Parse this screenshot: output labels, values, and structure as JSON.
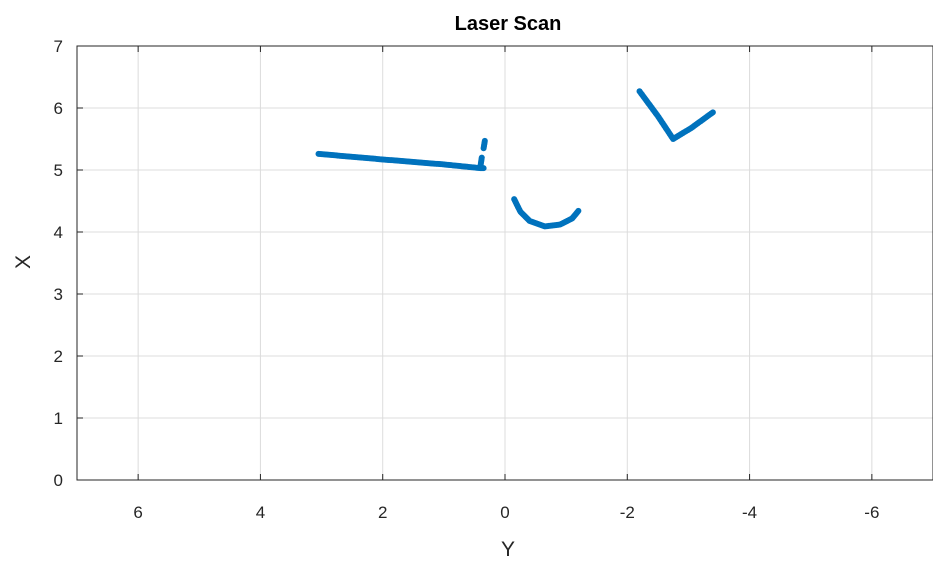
{
  "chart_data": {
    "type": "scatter",
    "title": "Laser Scan",
    "xlabel": "Y",
    "ylabel": "X",
    "xlim": [
      7,
      -7
    ],
    "ylim": [
      0,
      7
    ],
    "x_reversed": true,
    "grid": true,
    "x_ticks": [
      6,
      4,
      2,
      0,
      -2,
      -4,
      -6
    ],
    "x_tick_labels": [
      "6",
      "4",
      "2",
      "0",
      "-2",
      "-4",
      "-6"
    ],
    "y_ticks": [
      0,
      1,
      2,
      3,
      4,
      5,
      6,
      7
    ],
    "y_tick_labels": [
      "0",
      "1",
      "2",
      "3",
      "4",
      "5",
      "6",
      "7"
    ],
    "colors": {
      "points": "#0072bd",
      "grid": "#dcdcdc",
      "axes": "#262626"
    },
    "segments": [
      {
        "points": [
          [
            3.05,
            5.26
          ],
          [
            2.0,
            5.17
          ],
          [
            1.0,
            5.09
          ],
          [
            0.4,
            5.03
          ],
          [
            0.35,
            5.03
          ]
        ]
      },
      {
        "points": [
          [
            0.4,
            5.07
          ],
          [
            0.38,
            5.2
          ]
        ]
      },
      {
        "points": [
          [
            0.35,
            5.35
          ],
          [
            0.33,
            5.47
          ]
        ]
      },
      {
        "points": [
          [
            -0.15,
            4.53
          ],
          [
            -0.25,
            4.33
          ],
          [
            -0.4,
            4.18
          ],
          [
            -0.65,
            4.09
          ],
          [
            -0.9,
            4.12
          ],
          [
            -1.1,
            4.22
          ],
          [
            -1.2,
            4.34
          ]
        ]
      },
      {
        "points": [
          [
            -2.2,
            6.27
          ],
          [
            -2.5,
            5.87
          ],
          [
            -2.75,
            5.5
          ],
          [
            -3.05,
            5.68
          ],
          [
            -3.4,
            5.93
          ]
        ]
      }
    ]
  }
}
